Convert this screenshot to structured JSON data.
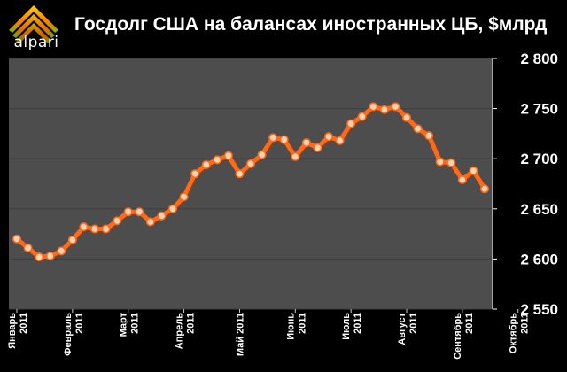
{
  "header": {
    "logo_text": "alpari",
    "title": "Госдолг США на балансах иностранных ЦБ, $млрд"
  },
  "colors": {
    "background": "#000000",
    "plot_background": "#4d4d4d",
    "gridline": "#3f3f3f",
    "series": "#ff6a1a",
    "marker_fill": "#ffd2b0",
    "logo_gradient": [
      "#ffd200",
      "#ff7a00",
      "#7ab800"
    ]
  },
  "chart_data": {
    "type": "line",
    "title": "Госдолг США на балансах иностранных ЦБ, $млрд",
    "xlabel": "",
    "ylabel": "",
    "ylim": [
      2550,
      2800
    ],
    "yticks": [
      "2 550",
      "2 600",
      "2 650",
      "2 700",
      "2 750",
      "2 800"
    ],
    "ytick_values": [
      2550,
      2600,
      2650,
      2700,
      2750,
      2800
    ],
    "grid": true,
    "legend": "none",
    "xtick_labels": [
      {
        "line1": "Январь",
        "line2": "2011"
      },
      {
        "line1": "Февраль",
        "line2": "2011"
      },
      {
        "line1": "Март",
        "line2": "2011"
      },
      {
        "line1": "Апрель",
        "line2": "2011"
      },
      {
        "line1": "Май 2011",
        "line2": ""
      },
      {
        "line1": "Июнь",
        "line2": "2011"
      },
      {
        "line1": "Июль",
        "line2": "2011"
      },
      {
        "line1": "Август",
        "line2": "2011"
      },
      {
        "line1": "Сентябрь",
        "line2": "2011"
      },
      {
        "line1": "Октябрь",
        "line2": "2011"
      }
    ],
    "xtick_positions": [
      0,
      5,
      10,
      15,
      20,
      25,
      30,
      35,
      40,
      45
    ],
    "series": [
      {
        "values": [
          2620,
          2611,
          2602,
          2603,
          2608,
          2619,
          2632,
          2630,
          2630,
          2638,
          2647,
          2647,
          2637,
          2643,
          2650,
          2662,
          2685,
          2694,
          2699,
          2703,
          2685,
          2695,
          2704,
          2721,
          2719,
          2702,
          2716,
          2711,
          2722,
          2718,
          2735,
          2742,
          2752,
          2749,
          2752,
          2741,
          2730,
          2723,
          2697,
          2696,
          2679,
          2688,
          2670
        ]
      }
    ]
  }
}
